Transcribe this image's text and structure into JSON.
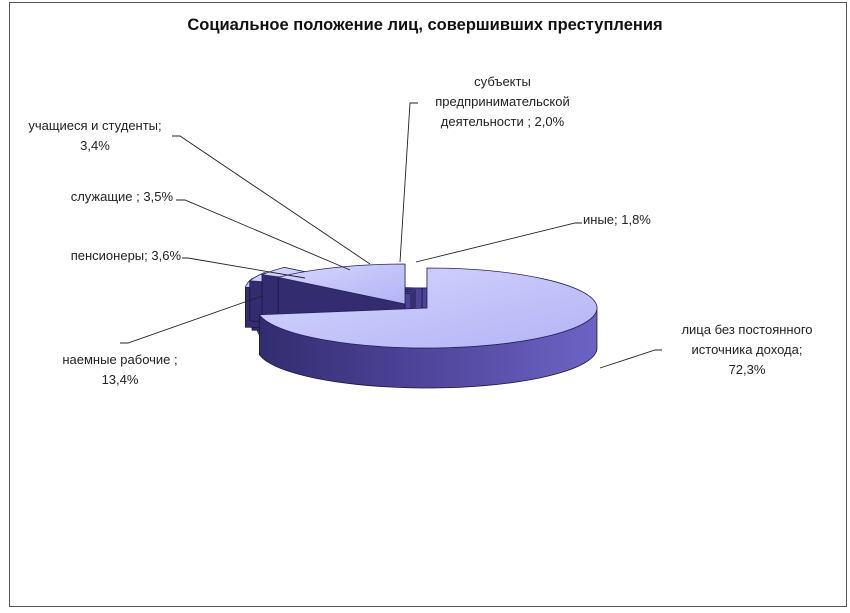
{
  "chart_data": {
    "type": "pie",
    "title": "Социальное положение лиц, совершивших преступления",
    "slices": [
      {
        "label_lines": [
          "лица без постоянного",
          "источника дохода;",
          "72,3%"
        ],
        "value": 72.3
      },
      {
        "label_lines": [
          "иные; 1,8%"
        ],
        "value": 1.8
      },
      {
        "label_lines": [
          "субъекты",
          "предпринимательской",
          "деятельности ; 2,0%"
        ],
        "value": 2.0
      },
      {
        "label_lines": [
          "учащиеся и студенты;",
          "3,4%"
        ],
        "value": 3.4
      },
      {
        "label_lines": [
          "служащие ; 3,5%"
        ],
        "value": 3.5
      },
      {
        "label_lines": [
          "пенсионеры; 3,6%"
        ],
        "value": 3.6
      },
      {
        "label_lines": [
          "наемные рабочие ;",
          "13,4%"
        ],
        "value": 13.4
      }
    ],
    "style": {
      "top_color": "#b3b3f5",
      "side_color": "#4d4398",
      "side_dark": "#332c6e",
      "leader_color": "#222222",
      "three_d": true,
      "exploded": true
    }
  }
}
